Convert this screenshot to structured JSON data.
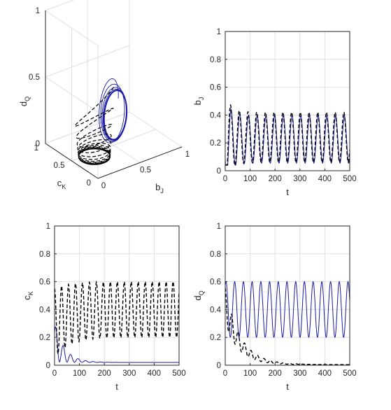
{
  "figure": {
    "colors": {
      "series_solid": "#1a1aa6",
      "series_dashed": "#000000",
      "axis": "#262626",
      "grid": "#dfdfdf"
    }
  },
  "chart_data": [
    {
      "id": "phase3d",
      "type": "line",
      "projection": "3d",
      "xlabel": {
        "main": "b",
        "sub": "J"
      },
      "ylabel": {
        "main": "c",
        "sub": "K"
      },
      "zlabel": {
        "main": "d",
        "sub": "Q"
      },
      "xticks": [
        "0",
        "0.5",
        "1"
      ],
      "yticks": [
        "0",
        "0.5",
        "1"
      ],
      "zticks": [
        "0",
        "0.5",
        "1"
      ],
      "xlim": [
        0,
        1
      ],
      "ylim": [
        0,
        1
      ],
      "zlim": [
        0,
        1
      ],
      "grid": true,
      "series": [
        {
          "style": "solid",
          "color": "#1a1aa6",
          "description_points": {
            "start": [
              0.2,
              0.3,
              0.45
            ],
            "limit_cycle_center": [
              0.2,
              0.0,
              0.4
            ],
            "limit_cycle_radius": [
              0.12,
              0.0,
              0.2
            ]
          }
        },
        {
          "style": "dashed",
          "color": "#000000",
          "description_points": {
            "start": [
              0.4,
              0.5,
              0.45
            ],
            "limit_cycle_center": [
              0.22,
              0.4,
              0.0
            ],
            "limit_cycle_radius": [
              0.18,
              0.2,
              0.0
            ]
          }
        }
      ]
    },
    {
      "id": "bJ",
      "type": "line",
      "xlabel": "t",
      "ylabel": {
        "main": "b",
        "sub": "J"
      },
      "xlim": [
        0,
        500
      ],
      "ylim": [
        0,
        1
      ],
      "xticks": [
        0,
        100,
        200,
        300,
        400,
        500
      ],
      "yticks": [
        0,
        0.2,
        0.4,
        0.6,
        0.8,
        1
      ],
      "grid": true,
      "series": [
        {
          "style": "solid",
          "color": "#1a1aa6",
          "period": 35,
          "min": 0.06,
          "max": 0.4,
          "initial_peak": 0.55
        },
        {
          "style": "dashed",
          "color": "#000000",
          "period": 35,
          "min": 0.06,
          "max": 0.42,
          "initial_peak": 0.6
        }
      ]
    },
    {
      "id": "cK",
      "type": "line",
      "xlabel": "t",
      "ylabel": {
        "main": "c",
        "sub": "K"
      },
      "xlim": [
        0,
        500
      ],
      "ylim": [
        0,
        1
      ],
      "xticks": [
        0,
        100,
        200,
        300,
        400,
        500
      ],
      "yticks": [
        0,
        0.2,
        0.4,
        0.6,
        0.8,
        1
      ],
      "grid": true,
      "series": [
        {
          "style": "solid",
          "color": "#1a1aa6",
          "start": 0.3,
          "decays_to": 0.0,
          "decay_end_t": 220
        },
        {
          "style": "dashed",
          "color": "#000000",
          "start": 0.58,
          "min": 0.2,
          "max": 0.6,
          "period": 28
        }
      ]
    },
    {
      "id": "dQ",
      "type": "line",
      "xlabel": "t",
      "ylabel": {
        "main": "d",
        "sub": "Q"
      },
      "xlim": [
        0,
        500
      ],
      "ylim": [
        0,
        1
      ],
      "xticks": [
        0,
        100,
        200,
        300,
        400,
        500
      ],
      "yticks": [
        0,
        0.2,
        0.4,
        0.6,
        0.8,
        1
      ],
      "grid": true,
      "series": [
        {
          "style": "solid",
          "color": "#1a1aa6",
          "start": 0.5,
          "min": 0.2,
          "max": 0.6,
          "period": 35
        },
        {
          "style": "dashed",
          "color": "#000000",
          "start": 0.55,
          "decays_to": 0.0,
          "decay_end_t": 420
        }
      ]
    }
  ]
}
